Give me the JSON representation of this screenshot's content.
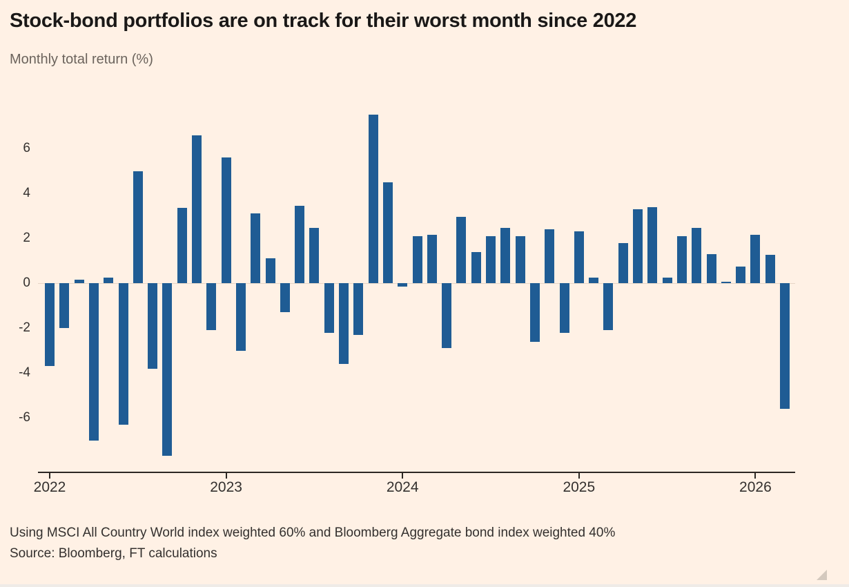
{
  "title": "Stock-bond portfolios are on track for their worst month since 2022",
  "subtitle": "Monthly total return (%)",
  "footer": {
    "note": "Using MSCI All Country World index weighted 60% and Bloomberg Aggregate bond index weighted 40%",
    "source": "Source: Bloomberg, FT calculations"
  },
  "colors": {
    "background": "#fff1e5",
    "bar": "#1f5c94",
    "axis": "#2b2723",
    "zero_line": "#e6d6c7",
    "title_text": "#1a1817",
    "subtitle_text": "#6b635c"
  },
  "chart_data": {
    "type": "bar",
    "title": "Stock-bond portfolios are on track for their worst month since 2022",
    "ylabel": "Monthly total return (%)",
    "xlabel": "",
    "ylim": [
      -8.4,
      8.0
    ],
    "grid": false,
    "legend": false,
    "y_ticks": [
      6,
      4,
      2,
      0,
      -2,
      -4,
      -6
    ],
    "x_tick_labels": [
      "2022",
      "2023",
      "2024",
      "2025",
      "2026"
    ],
    "x_tick_month_indices": [
      0,
      12,
      24,
      36,
      48
    ],
    "months": [
      "Jan 2022",
      "Feb 2022",
      "Mar 2022",
      "Apr 2022",
      "May 2022",
      "Jun 2022",
      "Jul 2022",
      "Aug 2022",
      "Sep 2022",
      "Oct 2022",
      "Nov 2022",
      "Dec 2022",
      "Jan 2023",
      "Feb 2023",
      "Mar 2023",
      "Apr 2023",
      "May 2023",
      "Jun 2023",
      "Jul 2023",
      "Aug 2023",
      "Sep 2023",
      "Oct 2023",
      "Nov 2023",
      "Dec 2023",
      "Jan 2024",
      "Feb 2024",
      "Mar 2024",
      "Apr 2024",
      "May 2024",
      "Jun 2024",
      "Jul 2024",
      "Aug 2024",
      "Sep 2024",
      "Oct 2024",
      "Nov 2024",
      "Dec 2024",
      "Jan 2025",
      "Feb 2025",
      "Mar 2025",
      "Apr 2025",
      "May 2025",
      "Jun 2025",
      "Jul 2025",
      "Aug 2025",
      "Sep 2025",
      "Oct 2025",
      "Nov 2025",
      "Dec 2025",
      "Jan 2026",
      "Feb 2026",
      "Mar 2026"
    ],
    "values": [
      -3.7,
      -2.0,
      0.15,
      -7.0,
      0.25,
      -6.3,
      5.0,
      -3.8,
      -7.7,
      3.35,
      6.6,
      -2.1,
      5.6,
      -3.0,
      3.1,
      1.1,
      -1.3,
      3.45,
      2.45,
      -2.2,
      -3.6,
      -2.3,
      7.5,
      4.5,
      -0.15,
      2.1,
      2.15,
      -2.9,
      2.95,
      1.4,
      2.1,
      2.45,
      2.1,
      -2.6,
      2.4,
      -2.2,
      2.3,
      0.25,
      -2.1,
      1.8,
      3.3,
      3.4,
      0.25,
      2.1,
      2.45,
      1.3,
      0.05,
      0.75,
      2.15,
      1.25,
      -5.6
    ]
  }
}
